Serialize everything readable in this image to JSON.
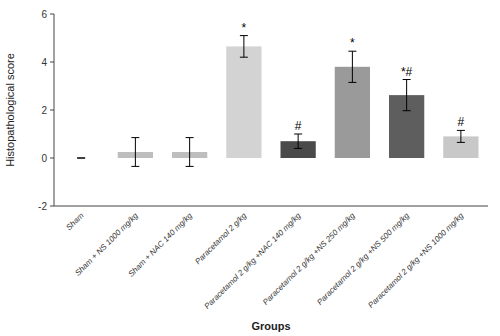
{
  "chart_data": {
    "type": "bar",
    "categories": [
      "Sham",
      "Sham + NS 1000 mg/kg",
      "Sham + NAC 140 mg/kg",
      "Paracetamol 2 g/kg",
      "Paracetamol 2 g/kg +NAC 140 mg/kg",
      "Paracetamol 2 g/kg +NS 250 mg/kg",
      "Paracetamol 2 g/kg +NS 500 mg/kg",
      "Paracetamol 2 g/kg +NS 1000 mg/kg"
    ],
    "values": [
      0.0,
      0.25,
      0.25,
      4.65,
      0.7,
      3.8,
      2.62,
      0.9
    ],
    "errors": [
      0.0,
      0.6,
      0.6,
      0.45,
      0.3,
      0.65,
      0.65,
      0.25
    ],
    "colors": [
      "#d8d8d8",
      "#bebebe",
      "#bebebe",
      "#d3d3d3",
      "#4a4a4a",
      "#9a9a9a",
      "#5e5e5e",
      "#c8c8c8"
    ],
    "annotations": [
      null,
      null,
      null,
      "*",
      "#",
      "*",
      "*#",
      "#"
    ],
    "ylabel": "Histopathological score",
    "xlabel": "Groups",
    "ylim": [
      -2,
      6
    ],
    "yticks": [
      -2,
      0,
      2,
      4,
      6
    ],
    "grid": false
  }
}
